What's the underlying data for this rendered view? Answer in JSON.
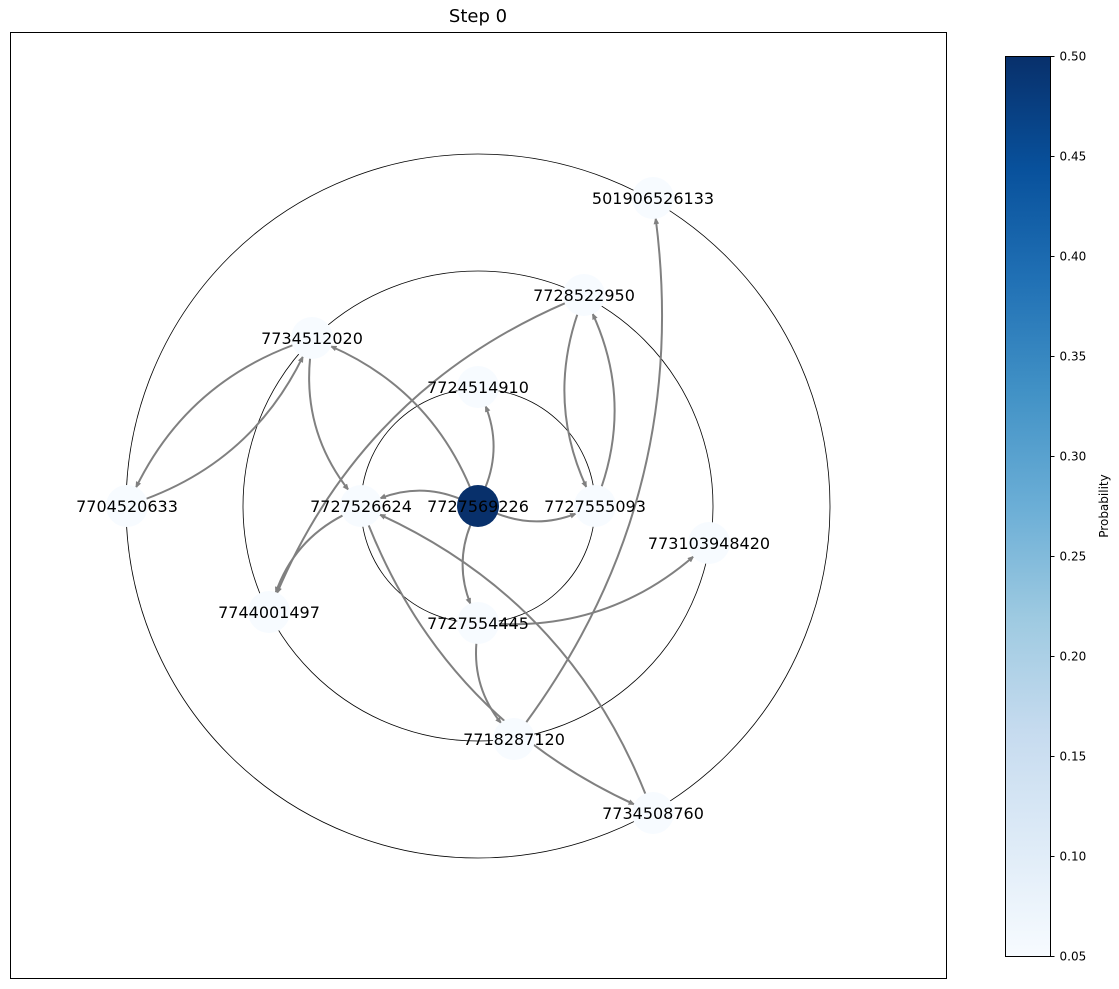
{
  "title": "Step 0",
  "colorbar": {
    "label": "Probability",
    "min": 0.05,
    "max": 0.5,
    "ticks": [
      "0.05",
      "0.10",
      "0.15",
      "0.20",
      "0.25",
      "0.30",
      "0.35",
      "0.40",
      "0.45",
      "0.50"
    ],
    "colormap": "Blues",
    "stops": [
      "#f7fbff",
      "#deebf7",
      "#c6dbef",
      "#9ecae1",
      "#6baed6",
      "#4292c6",
      "#2171b5",
      "#08519c",
      "#08306b"
    ]
  },
  "edge_color": "#808080",
  "ring_color": "#000000",
  "nodes": [
    {
      "id": "7727569226",
      "probability": 0.5
    },
    {
      "id": "7724514910",
      "probability": 0.05
    },
    {
      "id": "7727555093",
      "probability": 0.05
    },
    {
      "id": "7727554445",
      "probability": 0.05
    },
    {
      "id": "7727526624",
      "probability": 0.05
    },
    {
      "id": "7728522950",
      "probability": 0.05
    },
    {
      "id": "773103948420",
      "probability": 0.05
    },
    {
      "id": "7718287120",
      "probability": 0.05
    },
    {
      "id": "7744001497",
      "probability": 0.05
    },
    {
      "id": "7734512020",
      "probability": 0.05
    },
    {
      "id": "501906526133",
      "probability": 0.05
    },
    {
      "id": "7704520633",
      "probability": 0.05
    },
    {
      "id": "7734508760",
      "probability": 0.05
    }
  ],
  "edges": [
    [
      "7727569226",
      "7724514910"
    ],
    [
      "7727569226",
      "7727555093"
    ],
    [
      "7727569226",
      "7727554445"
    ],
    [
      "7727569226",
      "7727526624"
    ],
    [
      "7727569226",
      "7734512020"
    ],
    [
      "7727555093",
      "7728522950"
    ],
    [
      "7728522950",
      "7727555093"
    ],
    [
      "7728522950",
      "7744001497"
    ],
    [
      "7727554445",
      "773103948420"
    ],
    [
      "7727554445",
      "7718287120"
    ],
    [
      "7727526624",
      "7744001497"
    ],
    [
      "7727526624",
      "7734508760"
    ],
    [
      "7734512020",
      "7727526624"
    ],
    [
      "7734512020",
      "7704520633"
    ],
    [
      "7704520633",
      "7734512020"
    ],
    [
      "7718287120",
      "501906526133"
    ],
    [
      "7734508760",
      "7727526624"
    ]
  ]
}
